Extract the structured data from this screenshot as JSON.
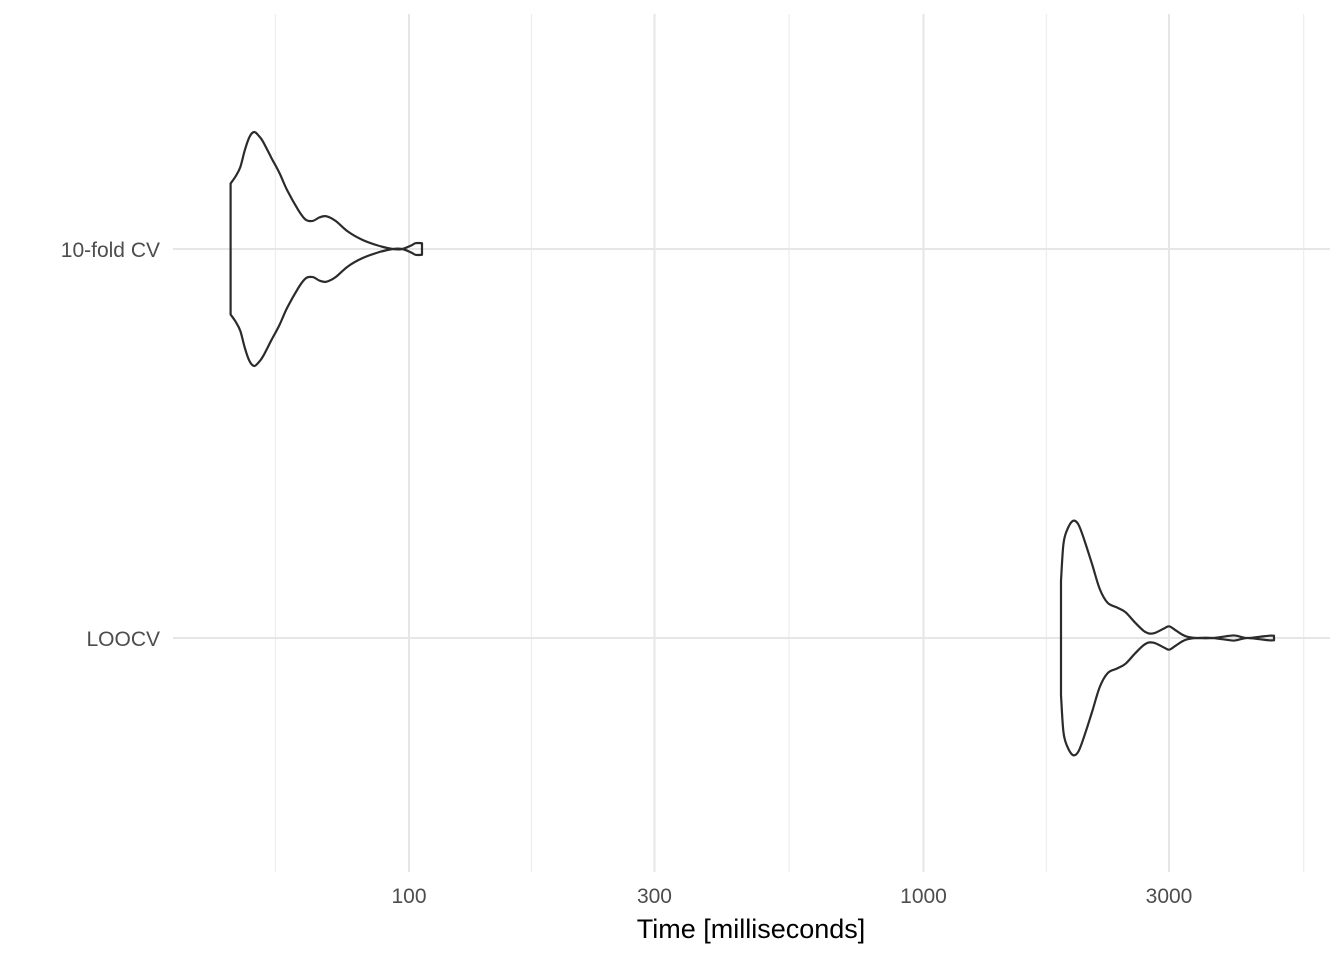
{
  "chart_data": {
    "type": "violin",
    "title": "",
    "xlabel": "Time [milliseconds]",
    "ylabel": "",
    "x_scale": "log10",
    "xlim": [
      38,
      6000
    ],
    "x_ticks": [
      100,
      300,
      1000,
      3000
    ],
    "x_tick_labels": [
      "100",
      "300",
      "1000",
      "3000"
    ],
    "x_minor_ticks": [
      55,
      173,
      548,
      1733,
      5480
    ],
    "grid": true,
    "categories": [
      "10-fold CV",
      "LOOCV"
    ],
    "series": [
      {
        "name": "10-fold CV",
        "min": 45,
        "max": 106,
        "density": [
          [
            45,
            0.56
          ],
          [
            46,
            0.62
          ],
          [
            47,
            0.7
          ],
          [
            48,
            0.85
          ],
          [
            49,
            0.96
          ],
          [
            50,
            1.0
          ],
          [
            51,
            0.97
          ],
          [
            52,
            0.92
          ],
          [
            54,
            0.78
          ],
          [
            56,
            0.65
          ],
          [
            58,
            0.5
          ],
          [
            61,
            0.33
          ],
          [
            63,
            0.25
          ],
          [
            65,
            0.24
          ],
          [
            67,
            0.27
          ],
          [
            69,
            0.28
          ],
          [
            72,
            0.24
          ],
          [
            76,
            0.15
          ],
          [
            81,
            0.08
          ],
          [
            87,
            0.03
          ],
          [
            93,
            0.0
          ],
          [
            97,
            0.0
          ],
          [
            101,
            0.03
          ],
          [
            103,
            0.05
          ],
          [
            106,
            0.05
          ]
        ]
      },
      {
        "name": "LOOCV",
        "min": 1850,
        "max": 4800,
        "density": [
          [
            1850,
            0.49
          ],
          [
            1870,
            0.8
          ],
          [
            1900,
            0.92
          ],
          [
            1950,
            1.0
          ],
          [
            2000,
            0.97
          ],
          [
            2060,
            0.82
          ],
          [
            2130,
            0.62
          ],
          [
            2200,
            0.42
          ],
          [
            2280,
            0.3
          ],
          [
            2380,
            0.26
          ],
          [
            2470,
            0.22
          ],
          [
            2580,
            0.13
          ],
          [
            2700,
            0.05
          ],
          [
            2800,
            0.04
          ],
          [
            2930,
            0.08
          ],
          [
            3000,
            0.1
          ],
          [
            3080,
            0.07
          ],
          [
            3180,
            0.03
          ],
          [
            3260,
            0.01
          ],
          [
            3400,
            0.0
          ],
          [
            3650,
            0.0
          ],
          [
            3950,
            0.02
          ],
          [
            4050,
            0.02
          ],
          [
            4250,
            0.0
          ],
          [
            4500,
            0.01
          ],
          [
            4700,
            0.02
          ],
          [
            4800,
            0.02
          ]
        ]
      }
    ]
  }
}
